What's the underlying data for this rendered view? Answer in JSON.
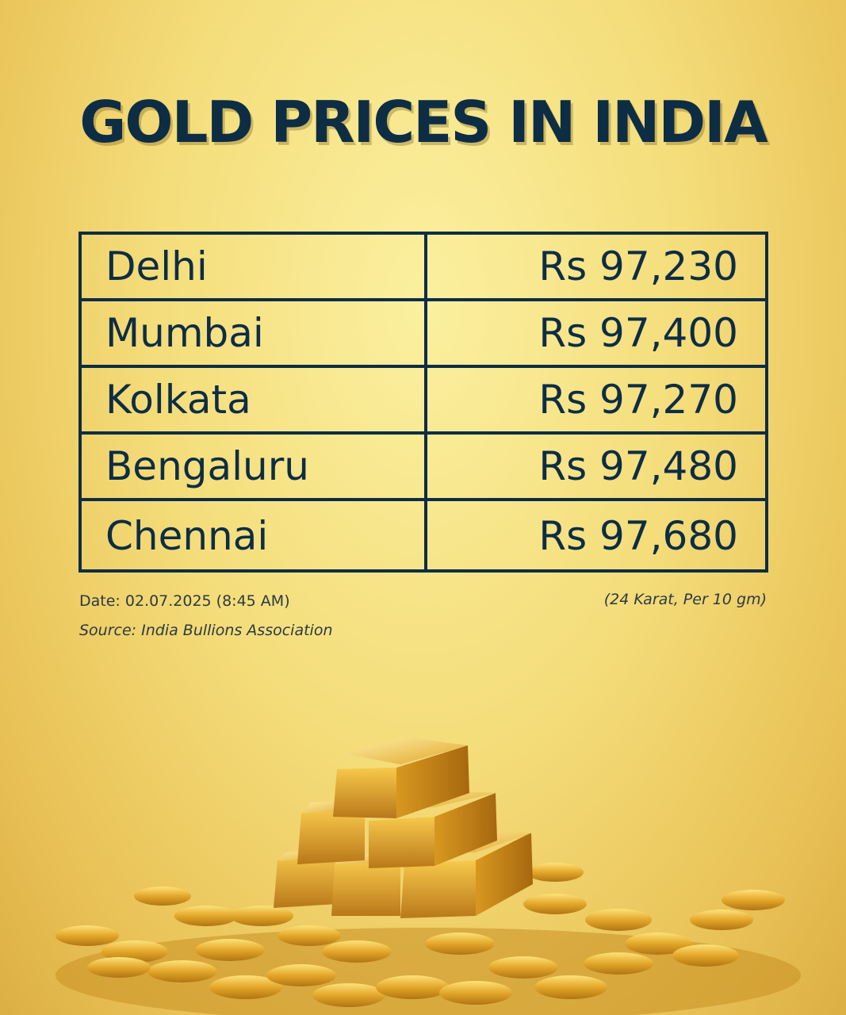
{
  "title": "GOLD PRICES IN INDIA",
  "rows": [
    {
      "city": "Delhi",
      "price": "Rs 97,230"
    },
    {
      "city": "Mumbai",
      "price": "Rs 97,400"
    },
    {
      "city": "Kolkata",
      "price": "Rs 97,270"
    },
    {
      "city": "Bengaluru",
      "price": "Rs 97,480"
    },
    {
      "city": "Chennai",
      "price": "Rs 97,680"
    }
  ],
  "footer": {
    "date": "Date: 02.07.2025 (8:45 AM)",
    "source": "Source: India Bullions Association",
    "unit": "(24 Karat, Per 10 gm)"
  },
  "colors": {
    "text": "#0d2d45",
    "background": "#f4dd7a",
    "gold": "#e0a92a"
  }
}
